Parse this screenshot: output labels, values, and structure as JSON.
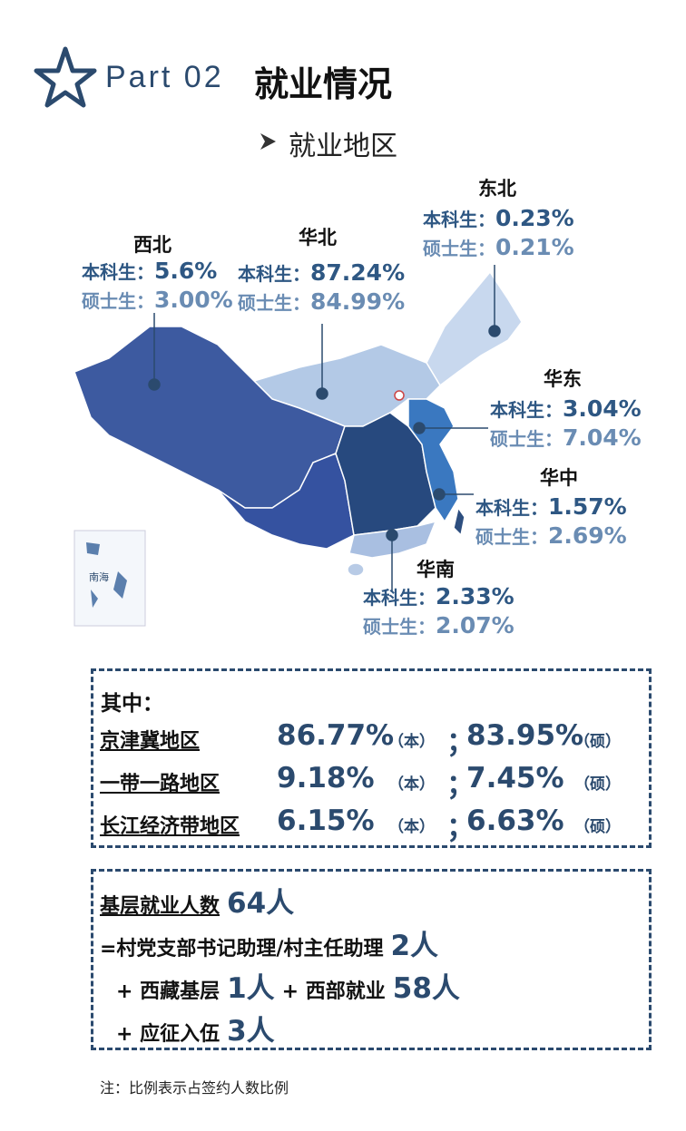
{
  "header": {
    "part": "Part 02",
    "title": "就业情况",
    "subtitle": "就业地区"
  },
  "regions": [
    {
      "name": "西北",
      "rows": [
        {
          "label": "本科生：",
          "value": "5.6%"
        },
        {
          "label": "硕士生：",
          "value": "3.00%"
        }
      ]
    },
    {
      "name": "华北",
      "rows": [
        {
          "label": "本科生：",
          "value": "87.24%"
        },
        {
          "label": "硕士生：",
          "value": "84.99%"
        }
      ]
    },
    {
      "name": "东北",
      "rows": [
        {
          "label": "本科生：",
          "value": "0.23%"
        },
        {
          "label": "硕士生：",
          "value": "0.21%"
        }
      ]
    },
    {
      "name": "华东",
      "rows": [
        {
          "label": "本科生：",
          "value": "3.04%"
        },
        {
          "label": "硕士生：",
          "value": "7.04%"
        }
      ]
    },
    {
      "name": "华中",
      "rows": [
        {
          "label": "本科生：",
          "value": "1.57%"
        },
        {
          "label": "硕士生：",
          "value": "2.69%"
        }
      ]
    },
    {
      "name": "华南",
      "rows": [
        {
          "label": "本科生：",
          "value": "2.33%"
        },
        {
          "label": "硕士生：",
          "value": "2.07%"
        }
      ]
    }
  ],
  "map_inset_label": "南海",
  "summary": {
    "heading": "其中：",
    "rows": [
      {
        "name": "京津冀地区",
        "undergrad": "86.77%",
        "undergrad_tag": "（本）",
        "sep": "；",
        "master": "83.95%",
        "master_tag": "（硕）"
      },
      {
        "name": "一带一路地区",
        "undergrad": "9.18%",
        "undergrad_tag": "（本）",
        "sep": "；",
        "master": "7.45%",
        "master_tag": "（硕）"
      },
      {
        "name": "长江经济带地区",
        "undergrad": "6.15%",
        "undergrad_tag": "（本）",
        "sep": "；",
        "master": "6.63%",
        "master_tag": "（硕）"
      }
    ]
  },
  "grassroots": {
    "lines": [
      [
        "基层就业人数",
        "64人"
      ],
      [
        "=村党支部书记助理/村主任助理",
        "2人"
      ],
      [
        "+ 西藏基层",
        "1人",
        "+ 西部就业",
        "58人"
      ],
      [
        "+ 应征入伍",
        "3人"
      ]
    ]
  },
  "note": "注：比例表示占签约人数比例"
}
